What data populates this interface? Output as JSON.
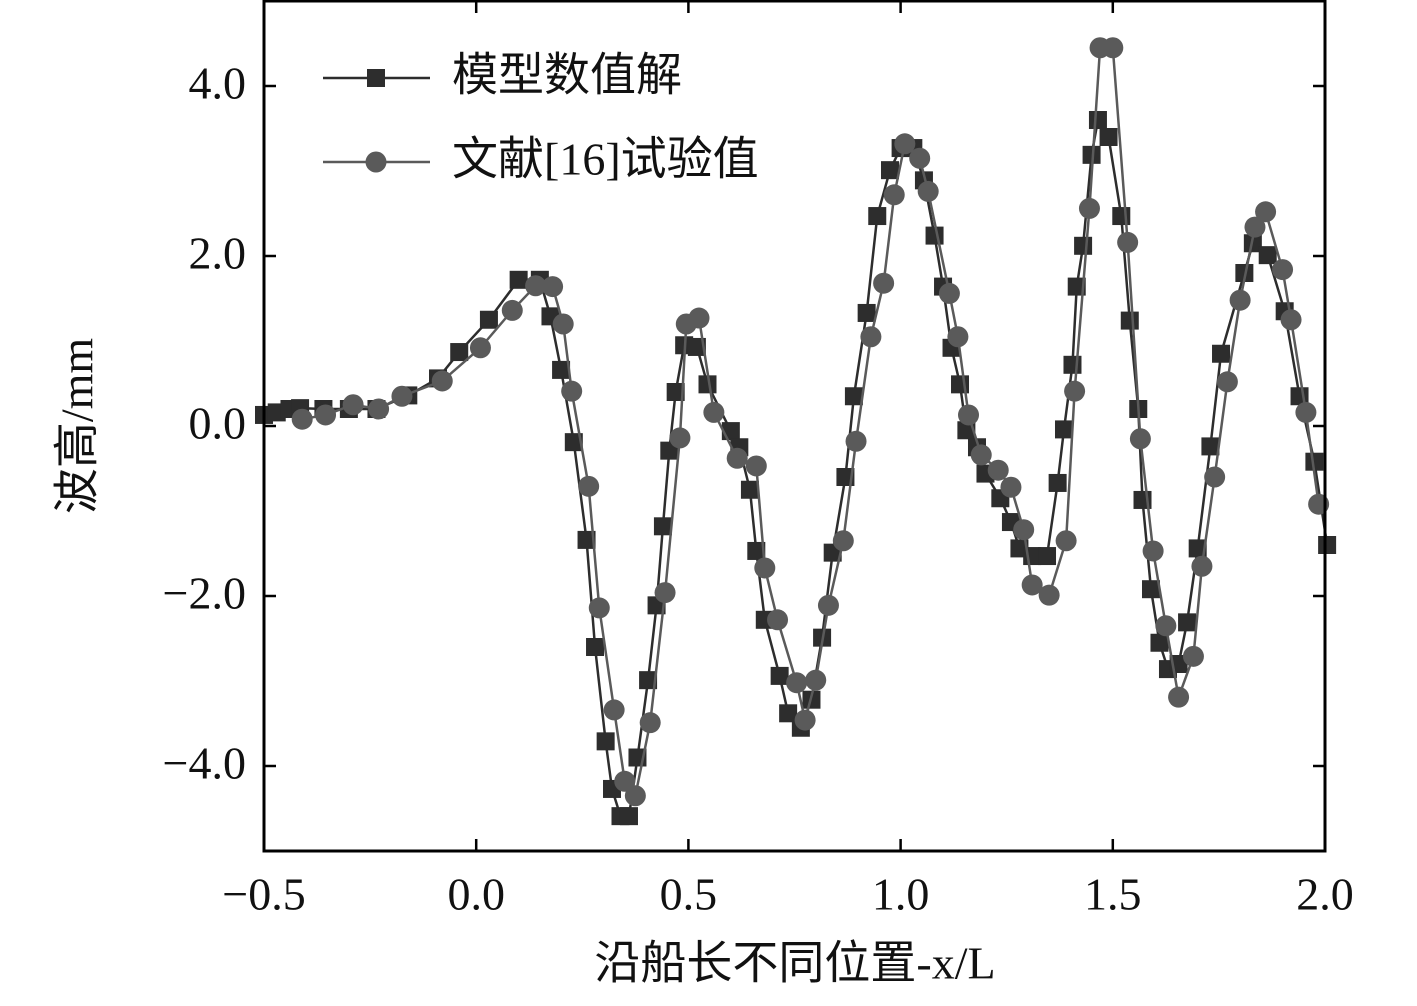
{
  "chart_data": {
    "type": "line",
    "xlabel": "沿船长不同位置-x/L",
    "ylabel": "波高/mm",
    "xlim": [
      -0.5,
      2.0
    ],
    "ylim": [
      -5.0,
      5.0
    ],
    "xticks": [
      {
        "value": -0.5,
        "label": "−0.5"
      },
      {
        "value": 0,
        "label": "0.0"
      },
      {
        "value": 0.5,
        "label": "0.5"
      },
      {
        "value": 1,
        "label": "1.0"
      },
      {
        "value": 1.5,
        "label": "1.5"
      },
      {
        "value": 2,
        "label": "2.0"
      }
    ],
    "yticks": [
      {
        "value": -4,
        "label": "−4.0"
      },
      {
        "value": -2,
        "label": "−2.0"
      },
      {
        "value": 0,
        "label": "0.0"
      },
      {
        "value": 2,
        "label": "2.0"
      },
      {
        "value": 4,
        "label": "4.0"
      }
    ],
    "legend": "upper left",
    "series": [
      {
        "name": "模型数值解",
        "color": "#2d2d2d",
        "marker": "square",
        "x": [
          -0.5,
          -0.47,
          -0.44,
          -0.415,
          -0.36,
          -0.3,
          -0.235,
          -0.16,
          -0.09,
          -0.04,
          0.03,
          0.1,
          0.15,
          0.175,
          0.2,
          0.23,
          0.26,
          0.28,
          0.305,
          0.32,
          0.34,
          0.36,
          0.38,
          0.405,
          0.425,
          0.44,
          0.455,
          0.47,
          0.49,
          0.52,
          0.545,
          0.6,
          0.62,
          0.645,
          0.66,
          0.68,
          0.715,
          0.735,
          0.765,
          0.79,
          0.815,
          0.84,
          0.87,
          0.89,
          0.92,
          0.945,
          0.975,
          1.0,
          1.03,
          1.055,
          1.08,
          1.1,
          1.12,
          1.14,
          1.155,
          1.18,
          1.2,
          1.235,
          1.26,
          1.28,
          1.31,
          1.345,
          1.37,
          1.385,
          1.405,
          1.415,
          1.43,
          1.45,
          1.465,
          1.49,
          1.52,
          1.54,
          1.56,
          1.57,
          1.59,
          1.61,
          1.63,
          1.655,
          1.675,
          1.7,
          1.73,
          1.755,
          1.81,
          1.83,
          1.865,
          1.905,
          1.94,
          1.975,
          2.005
        ],
        "values": [
          0.13,
          0.16,
          0.2,
          0.21,
          0.2,
          0.2,
          0.2,
          0.36,
          0.56,
          0.87,
          1.25,
          1.72,
          1.72,
          1.29,
          0.66,
          -0.19,
          -1.34,
          -2.6,
          -3.71,
          -4.27,
          -4.59,
          -4.59,
          -3.9,
          -2.99,
          -2.11,
          -1.18,
          -0.29,
          0.4,
          0.95,
          0.93,
          0.49,
          -0.06,
          -0.25,
          -0.75,
          -1.47,
          -2.28,
          -2.94,
          -3.38,
          -3.55,
          -3.22,
          -2.49,
          -1.49,
          -0.6,
          0.35,
          1.33,
          2.47,
          3.01,
          3.27,
          3.27,
          2.89,
          2.24,
          1.64,
          0.92,
          0.49,
          -0.05,
          -0.25,
          -0.56,
          -0.85,
          -1.13,
          -1.44,
          -1.53,
          -1.53,
          -0.67,
          -0.04,
          0.72,
          1.64,
          2.12,
          3.19,
          3.6,
          3.4,
          2.47,
          1.24,
          0.2,
          -0.87,
          -1.92,
          -2.55,
          -2.86,
          -2.8,
          -2.31,
          -1.44,
          -0.24,
          0.85,
          1.8,
          2.15,
          2.01,
          1.35,
          0.35,
          -0.42,
          -1.4
        ]
      },
      {
        "name": "文献[16]试验值",
        "color": "#5a5a5a",
        "marker": "circle",
        "x": [
          -0.41,
          -0.355,
          -0.29,
          -0.23,
          -0.175,
          -0.08,
          0.01,
          0.085,
          0.14,
          0.18,
          0.205,
          0.225,
          0.265,
          0.29,
          0.325,
          0.35,
          0.375,
          0.41,
          0.445,
          0.48,
          0.495,
          0.525,
          0.56,
          0.615,
          0.66,
          0.68,
          0.71,
          0.755,
          0.775,
          0.8,
          0.83,
          0.865,
          0.895,
          0.93,
          0.96,
          0.985,
          1.01,
          1.045,
          1.065,
          1.115,
          1.135,
          1.16,
          1.19,
          1.23,
          1.26,
          1.29,
          1.31,
          1.35,
          1.39,
          1.41,
          1.445,
          1.47,
          1.5,
          1.535,
          1.565,
          1.595,
          1.625,
          1.655,
          1.69,
          1.71,
          1.74,
          1.77,
          1.8,
          1.835,
          1.86,
          1.9,
          1.92,
          1.955,
          1.985
        ],
        "values": [
          0.08,
          0.13,
          0.25,
          0.2,
          0.35,
          0.53,
          0.92,
          1.36,
          1.65,
          1.64,
          1.2,
          0.41,
          -0.71,
          -2.14,
          -3.34,
          -4.18,
          -4.35,
          -3.49,
          -1.96,
          -0.14,
          1.2,
          1.27,
          0.16,
          -0.38,
          -0.47,
          -1.67,
          -2.28,
          -3.02,
          -3.46,
          -2.99,
          -2.11,
          -1.35,
          -0.18,
          1.05,
          1.68,
          2.72,
          3.32,
          3.15,
          2.76,
          1.56,
          1.05,
          0.13,
          -0.34,
          -0.52,
          -0.72,
          -1.22,
          -1.87,
          -1.99,
          -1.35,
          0.41,
          2.56,
          4.45,
          4.45,
          2.16,
          -0.15,
          -1.47,
          -2.35,
          -3.19,
          -2.71,
          -1.65,
          -0.6,
          0.52,
          1.48,
          2.34,
          2.52,
          1.84,
          1.25,
          0.16,
          -0.92
        ]
      }
    ]
  }
}
